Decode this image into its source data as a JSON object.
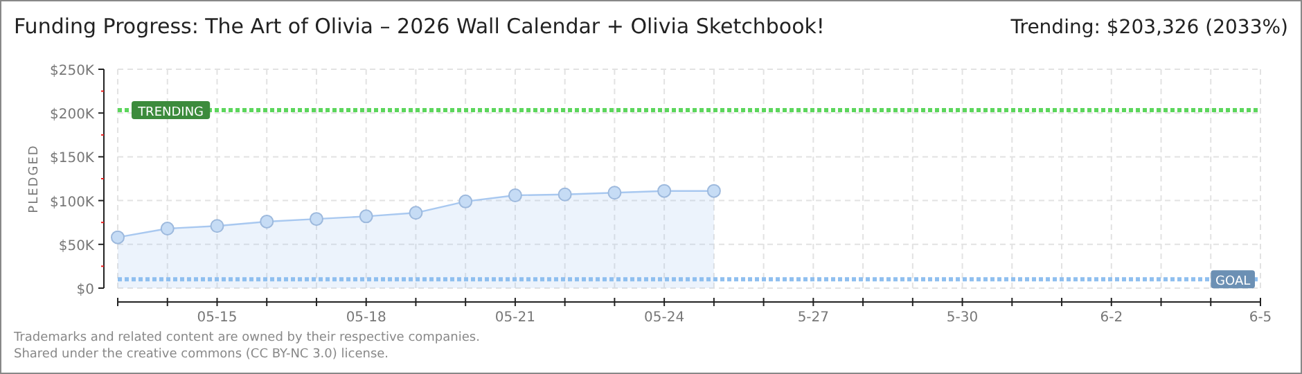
{
  "chart_data": {
    "type": "area",
    "title": "Funding Progress: The Art of Olivia – 2026 Wall Calendar + Olivia Sketchbook!",
    "subtitle": "Trending:  $203,326 (2033%)",
    "ylabel": "PLEDGED",
    "x": [
      "--05-13",
      "--05-14",
      "--05-15",
      "--05-16",
      "--05-17",
      "--05-18",
      "--05-19",
      "--05-20",
      "--05-21",
      "--05-22",
      "--05-23",
      "--05-24",
      "--05-25"
    ],
    "series": [
      {
        "color": "#a8c8f0",
        "values": [
          58000,
          68000,
          71000,
          76000,
          79000,
          82000,
          86000,
          99000,
          106000,
          107000,
          109000,
          111000,
          111000
        ]
      }
    ],
    "marker": "circle",
    "xlim": [
      "--05-13",
      "--06-05"
    ],
    "xticks": [
      {
        "value": "--05-13",
        "label": null
      },
      {
        "value": "--05-14",
        "label": null
      },
      {
        "value": "--05-15",
        "label": "05-15"
      },
      {
        "value": "--05-16",
        "label": null
      },
      {
        "value": "--05-17",
        "label": null
      },
      {
        "value": "--05-18",
        "label": "05-18"
      },
      {
        "value": "--05-19",
        "label": null
      },
      {
        "value": "--05-20",
        "label": null
      },
      {
        "value": "--05-21",
        "label": "05-21"
      },
      {
        "value": "--05-22",
        "label": null
      },
      {
        "value": "--05-23",
        "label": null
      },
      {
        "value": "--05-24",
        "label": "05-24"
      },
      {
        "value": "--05-25",
        "label": null
      },
      {
        "value": "--05-26",
        "label": null
      },
      {
        "value": "--05-27",
        "label": "5-27"
      },
      {
        "value": "--05-28",
        "label": null
      },
      {
        "value": "--05-29",
        "label": null
      },
      {
        "value": "--05-30",
        "label": "5-30"
      },
      {
        "value": "--05-31",
        "label": null
      },
      {
        "value": "--06-01",
        "label": null
      },
      {
        "value": "--06-02",
        "label": "6-2"
      },
      {
        "value": "--06-03",
        "label": null
      },
      {
        "value": "--06-04",
        "label": null
      },
      {
        "value": "--06-05",
        "label": "6-5"
      }
    ],
    "ylim": [
      0,
      250000
    ],
    "yticks": [
      {
        "value": 0,
        "label": "$0"
      },
      {
        "value": 25000,
        "label": null
      },
      {
        "value": 50000,
        "label": "$50K"
      },
      {
        "value": 75000,
        "label": null
      },
      {
        "value": 100000,
        "label": "$100K"
      },
      {
        "value": 125000,
        "label": null
      },
      {
        "value": 150000,
        "label": "$150K"
      },
      {
        "value": 175000,
        "label": null
      },
      {
        "value": 200000,
        "label": "$200K"
      },
      {
        "value": 225000,
        "label": null
      },
      {
        "value": 250000,
        "label": "$250K"
      }
    ],
    "grid": true,
    "ref_lines": [
      {
        "axis": "y",
        "value": 203326,
        "label": "TRENDING",
        "color": "#5cd65c",
        "line_style": "dotted"
      },
      {
        "axis": "y",
        "value": 10000,
        "label": "GOAL",
        "color": "#8fbfef",
        "line_style": "dotted"
      }
    ],
    "annotations": [
      "Trademarks and related content are owned by their respective companies.",
      "Shared under the creative commons (CC BY-NC 3.0) license."
    ]
  }
}
